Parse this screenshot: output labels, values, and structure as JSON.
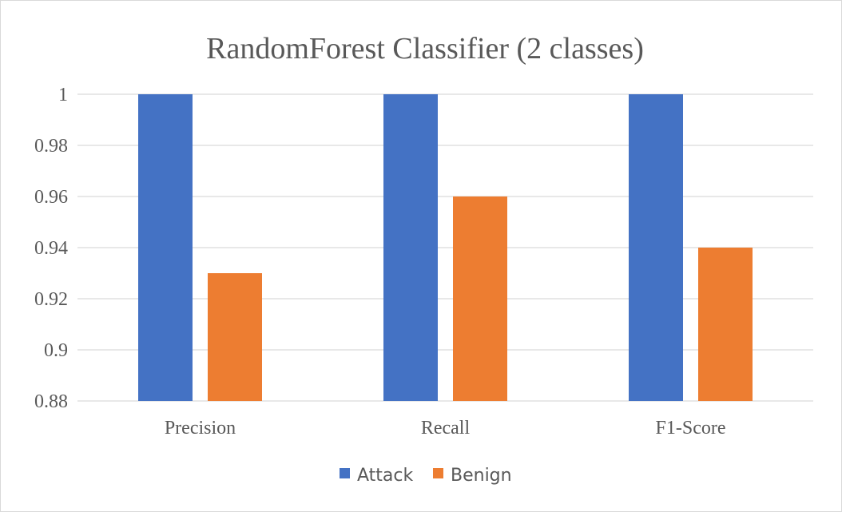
{
  "chart_data": {
    "type": "bar",
    "title": "RandomForest Classifier (2 classes)",
    "xlabel": "",
    "ylabel": "",
    "categories": [
      "Precision",
      "Recall",
      "F1-Score"
    ],
    "series": [
      {
        "name": "Attack",
        "values": [
          1.0,
          1.0,
          1.0
        ],
        "color": "#4472c4"
      },
      {
        "name": "Benign",
        "values": [
          0.93,
          0.96,
          0.94
        ],
        "color": "#ed7d31"
      }
    ],
    "ylim": [
      0.88,
      1.0
    ],
    "yticks": [
      0.88,
      0.9,
      0.92,
      0.94,
      0.96,
      0.98,
      1
    ],
    "ytick_labels": [
      "0.88",
      "0.9",
      "0.92",
      "0.94",
      "0.96",
      "0.98",
      "1"
    ],
    "grid": true,
    "legend_position": "bottom"
  }
}
